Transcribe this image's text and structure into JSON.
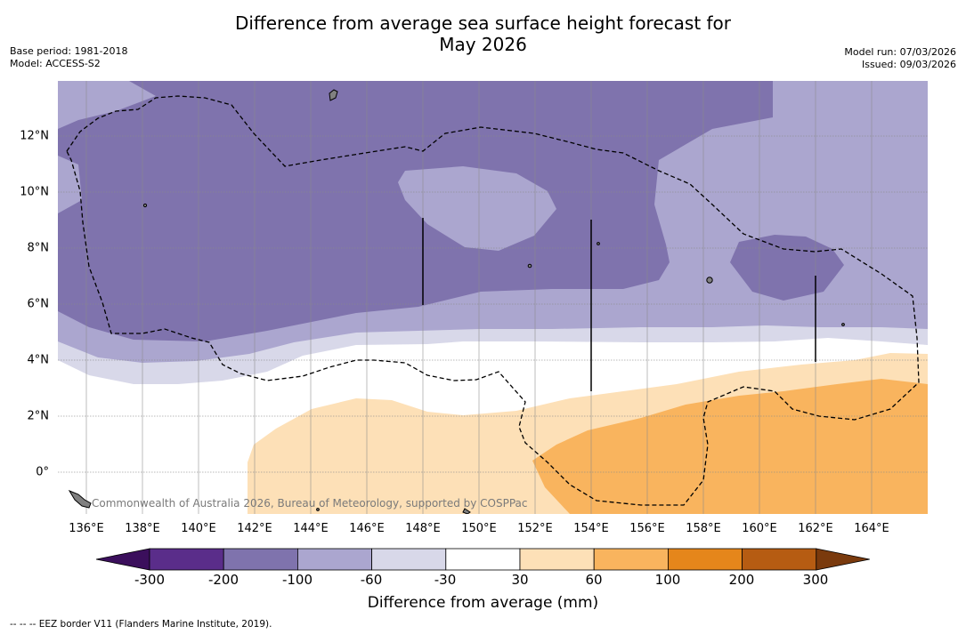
{
  "header": {
    "title_line1": "Difference from average sea surface height forecast for",
    "title_line2": "May 2026",
    "base_period": "Base period: 1981-2018",
    "model": "Model: ACCESS-S2",
    "model_run": "Model run: 07/03/2026",
    "issued": "Issued: 09/03/2026"
  },
  "map": {
    "x_ticks": [
      "136°E",
      "138°E",
      "140°E",
      "142°E",
      "144°E",
      "146°E",
      "148°E",
      "150°E",
      "152°E",
      "154°E",
      "156°E",
      "158°E",
      "160°E",
      "162°E",
      "164°E"
    ],
    "y_ticks": [
      "12°N",
      "10°N",
      "8°N",
      "6°N",
      "4°N",
      "2°N",
      "0°"
    ],
    "credit": "Commonwealth of Australia 2026, Bureau of Meteorology, supported by COSPPac",
    "land_color": "#808080"
  },
  "colorbar": {
    "ticks": [
      "-300",
      "-200",
      "-100",
      "-60",
      "-30",
      "30",
      "60",
      "100",
      "200",
      "300"
    ],
    "colors": [
      "#3b0f5c",
      "#5a2d8a",
      "#7f73ad",
      "#aba6cf",
      "#d8d8e9",
      "#ffffff",
      "#fde0b7",
      "#f9b45e",
      "#e5861b",
      "#b65c12",
      "#7a3a0d"
    ],
    "label": "Difference from average (mm)"
  },
  "footer": {
    "legend": "--  --  -- EEZ border V11 (Flanders Marine Institute, 2019)."
  }
}
